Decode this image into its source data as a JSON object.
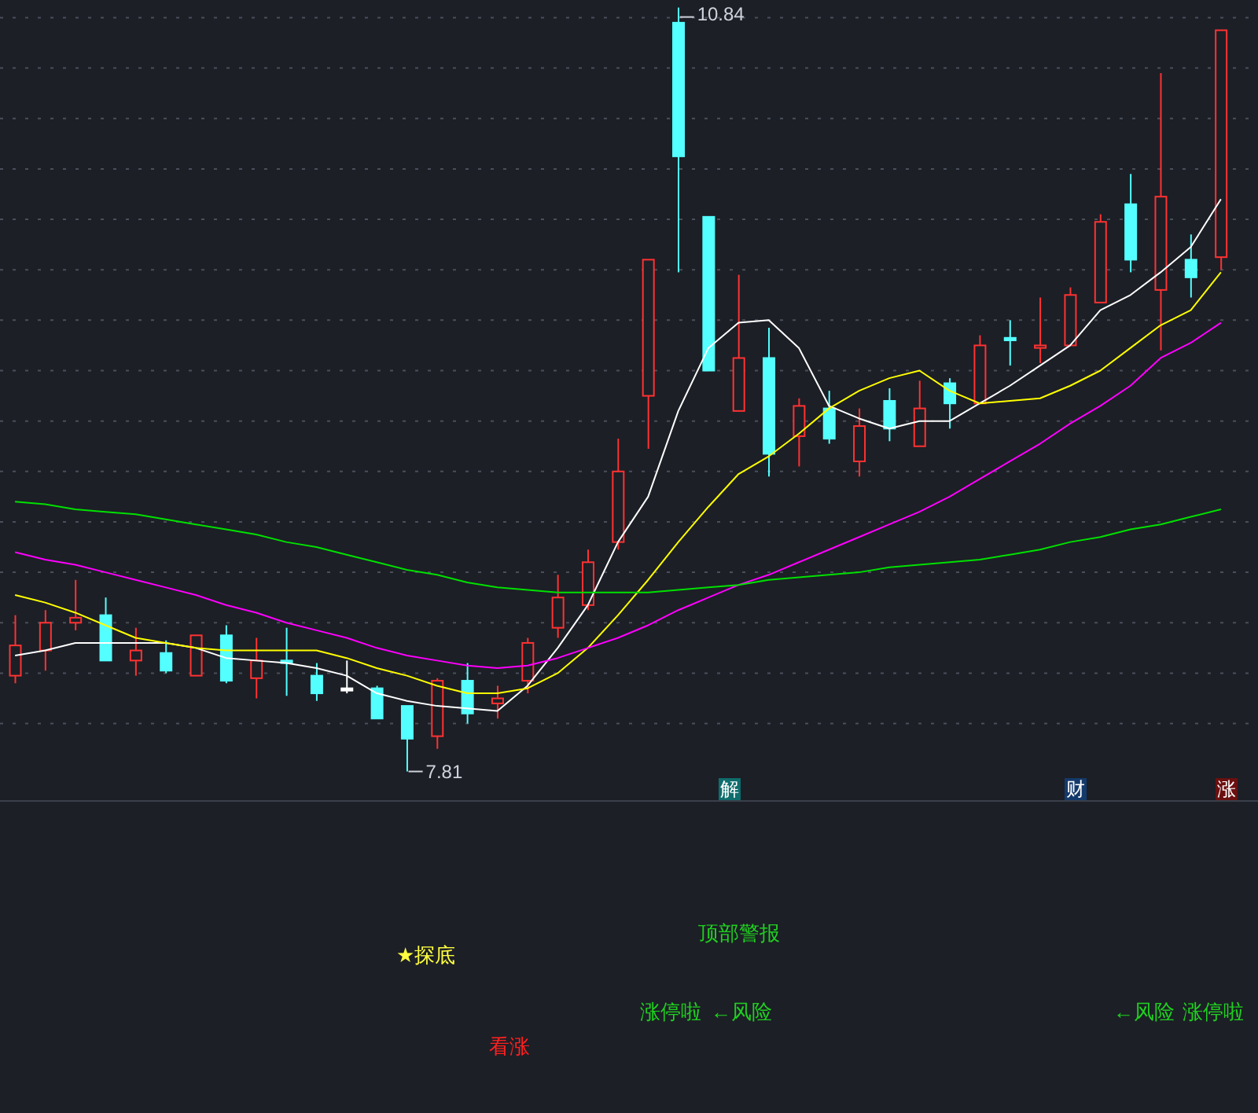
{
  "chart_data": [
    {
      "type": "candlestick",
      "categories": [
        null,
        null,
        null,
        null,
        null,
        null,
        null,
        null,
        null,
        null,
        null,
        null,
        null,
        null,
        null,
        null,
        null,
        null,
        null,
        null,
        null,
        null,
        null,
        null,
        null,
        null,
        null,
        null,
        null,
        null,
        null,
        null,
        null,
        null,
        null,
        null,
        null,
        null,
        null,
        null,
        null
      ],
      "ohlc": [
        [
          8.19,
          8.43,
          8.16,
          8.31
        ],
        [
          8.29,
          8.45,
          8.21,
          8.4
        ],
        [
          8.4,
          8.57,
          8.37,
          8.42
        ],
        [
          8.43,
          8.5,
          8.25,
          8.25
        ],
        [
          8.25,
          8.38,
          8.19,
          8.29
        ],
        [
          8.28,
          8.33,
          8.2,
          8.21
        ],
        [
          8.19,
          8.35,
          8.19,
          8.35
        ],
        [
          8.35,
          8.39,
          8.16,
          8.17
        ],
        [
          8.18,
          8.34,
          8.1,
          8.25
        ],
        [
          8.25,
          8.38,
          8.11,
          8.24
        ],
        [
          8.19,
          8.24,
          8.09,
          8.12
        ],
        [
          8.14,
          8.25,
          8.12,
          8.14
        ],
        [
          8.14,
          8.15,
          8.02,
          8.02
        ],
        [
          8.07,
          8.07,
          7.81,
          7.94
        ],
        [
          7.95,
          8.18,
          7.9,
          8.17
        ],
        [
          8.17,
          8.24,
          8.0,
          8.04
        ],
        [
          8.08,
          8.15,
          8.02,
          8.1
        ],
        [
          8.17,
          8.34,
          8.12,
          8.32
        ],
        [
          8.38,
          8.59,
          8.34,
          8.5
        ],
        [
          8.47,
          8.69,
          8.45,
          8.64
        ],
        [
          8.72,
          9.13,
          8.69,
          9.0
        ],
        [
          9.3,
          9.84,
          9.09,
          9.84
        ],
        [
          10.78,
          10.84,
          9.79,
          10.25
        ],
        [
          10.01,
          10.01,
          9.4,
          9.4
        ],
        [
          9.24,
          9.78,
          9.24,
          9.45
        ],
        [
          9.45,
          9.57,
          8.98,
          9.07
        ],
        [
          9.14,
          9.29,
          9.02,
          9.26
        ],
        [
          9.25,
          9.32,
          9.11,
          9.13
        ],
        [
          9.04,
          9.25,
          8.98,
          9.18
        ],
        [
          9.28,
          9.33,
          9.12,
          9.17
        ],
        [
          9.1,
          9.36,
          9.1,
          9.25
        ],
        [
          9.35,
          9.37,
          9.17,
          9.27
        ],
        [
          9.27,
          9.54,
          9.27,
          9.5
        ],
        [
          9.53,
          9.6,
          9.42,
          9.52
        ],
        [
          9.49,
          9.69,
          9.43,
          9.5
        ],
        [
          9.5,
          9.73,
          9.5,
          9.7
        ],
        [
          9.67,
          10.02,
          9.67,
          9.99
        ],
        [
          10.06,
          10.18,
          9.79,
          9.84
        ],
        [
          9.72,
          10.58,
          9.48,
          10.09
        ],
        [
          9.84,
          9.94,
          9.69,
          9.77
        ],
        [
          9.85,
          10.75,
          9.8,
          10.75
        ]
      ],
      "colors": [
        "#ff3232",
        "#ff3232",
        "#ff3232",
        "#54ffff",
        "#ff3232",
        "#54ffff",
        "#ff3232",
        "#54ffff",
        "#ff3232",
        "#54ffff",
        "#54ffff",
        "#ffffff",
        "#54ffff",
        "#54ffff",
        "#ff3232",
        "#54ffff",
        "#ff3232",
        "#ff3232",
        "#ff3232",
        "#ff3232",
        "#ff3232",
        "#ff3232",
        "#54ffff",
        "#54ffff",
        "#ff3232",
        "#54ffff",
        "#ff3232",
        "#54ffff",
        "#ff3232",
        "#54ffff",
        "#ff3232",
        "#54ffff",
        "#ff3232",
        "#54ffff",
        "#ff3232",
        "#ff3232",
        "#ff3232",
        "#54ffff",
        "#ff3232",
        "#54ffff",
        "#ff3232"
      ],
      "series": [
        {
          "type": "line",
          "color": "#ffffff",
          "values": [
            8.27,
            8.29,
            8.32,
            8.32,
            8.32,
            8.32,
            8.3,
            8.26,
            8.25,
            8.24,
            8.22,
            8.19,
            8.12,
            8.09,
            8.07,
            8.06,
            8.05,
            8.15,
            8.3,
            8.47,
            8.72,
            8.9,
            9.24,
            9.49,
            9.59,
            9.6,
            9.49,
            9.26,
            9.21,
            9.17,
            9.2,
            9.2,
            9.27,
            9.34,
            9.42,
            9.5,
            9.64,
            9.7,
            9.79,
            9.89,
            10.08
          ]
        },
        {
          "type": "line",
          "color": "#ffff00",
          "values": [
            8.51,
            8.48,
            8.44,
            8.39,
            8.34,
            8.32,
            8.3,
            8.29,
            8.29,
            8.29,
            8.29,
            8.26,
            8.22,
            8.19,
            8.15,
            8.12,
            8.12,
            8.14,
            8.2,
            8.3,
            8.43,
            8.57,
            8.72,
            8.86,
            8.99,
            9.06,
            9.15,
            9.25,
            9.32,
            9.37,
            9.4,
            9.32,
            9.27,
            9.28,
            9.29,
            9.34,
            9.4,
            9.49,
            9.58,
            9.64,
            9.79
          ]
        },
        {
          "type": "line",
          "color": "#ff00ff",
          "values": [
            8.68,
            8.65,
            8.63,
            8.6,
            8.57,
            8.54,
            8.51,
            8.47,
            8.44,
            8.4,
            8.37,
            8.34,
            8.3,
            8.27,
            8.25,
            8.23,
            8.22,
            8.23,
            8.26,
            8.3,
            8.34,
            8.39,
            8.45,
            8.5,
            8.55,
            8.59,
            8.64,
            8.69,
            8.74,
            8.79,
            8.84,
            8.9,
            8.97,
            9.04,
            9.11,
            9.19,
            9.26,
            9.34,
            9.45,
            9.51,
            9.59
          ]
        },
        {
          "type": "line",
          "color": "#00e000",
          "values": [
            8.88,
            8.87,
            8.85,
            8.84,
            8.83,
            8.81,
            8.79,
            8.77,
            8.75,
            8.72,
            8.7,
            8.67,
            8.64,
            8.61,
            8.59,
            8.56,
            8.54,
            8.53,
            8.52,
            8.52,
            8.52,
            8.52,
            8.53,
            8.54,
            8.55,
            8.57,
            8.58,
            8.59,
            8.6,
            8.62,
            8.63,
            8.64,
            8.65,
            8.67,
            8.69,
            8.72,
            8.74,
            8.77,
            8.79,
            8.82,
            8.85
          ]
        }
      ],
      "ylim": [
        7.69,
        10.87
      ],
      "yticks": [
        {
          "value": 8.0,
          "label": null
        },
        {
          "value": 8.2,
          "label": null
        },
        {
          "value": 8.4,
          "label": null
        },
        {
          "value": 8.6,
          "label": null
        },
        {
          "value": 8.8,
          "label": null
        },
        {
          "value": 9.0,
          "label": null
        },
        {
          "value": 9.2,
          "label": null
        },
        {
          "value": 9.4,
          "label": null
        },
        {
          "value": 9.6,
          "label": null
        },
        {
          "value": 9.8,
          "label": null
        },
        {
          "value": 10.0,
          "label": null
        },
        {
          "value": 10.2,
          "label": null
        },
        {
          "value": 10.4,
          "label": null
        },
        {
          "value": 10.6,
          "label": null
        },
        {
          "value": 10.8,
          "label": null
        }
      ],
      "grid": "y",
      "tick_labels": false,
      "annotations": [
        "10.84",
        "7.81",
        "解",
        "财",
        "涨"
      ]
    },
    {
      "type": "other",
      "annotations": [
        "★探底",
        "看涨",
        "涨停啦",
        "顶部警报",
        "←风险",
        "←风险",
        "涨停啦"
      ]
    }
  ]
}
